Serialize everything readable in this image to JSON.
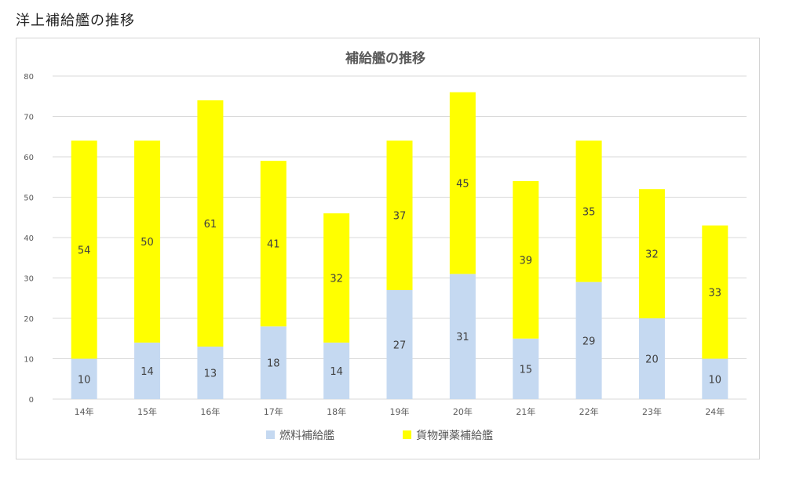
{
  "page": {
    "heading": "洋上補給艦の推移"
  },
  "colors": {
    "fuel": "#c5d9f1",
    "cargo": "#ffff00",
    "grid": "#d9d9d9",
    "axis_text": "#595959",
    "label_text": "#404040"
  },
  "chart_data": {
    "type": "bar",
    "stacked": true,
    "title": "補給艦の推移",
    "xlabel": "",
    "ylabel": "",
    "ylim": [
      0,
      80
    ],
    "yticks": [
      0,
      10,
      20,
      30,
      40,
      50,
      60,
      70,
      80
    ],
    "grid": true,
    "legend_position": "bottom",
    "categories": [
      "14年",
      "15年",
      "16年",
      "17年",
      "18年",
      "19年",
      "20年",
      "21年",
      "22年",
      "23年",
      "24年"
    ],
    "series": [
      {
        "name": "燃料補給艦",
        "color": "#c5d9f1",
        "values": [
          10,
          14,
          13,
          18,
          14,
          27,
          31,
          15,
          29,
          20,
          10
        ]
      },
      {
        "name": "貨物弾薬補給艦",
        "color": "#ffff00",
        "values": [
          54,
          50,
          61,
          41,
          32,
          37,
          45,
          39,
          35,
          32,
          33
        ]
      }
    ]
  }
}
